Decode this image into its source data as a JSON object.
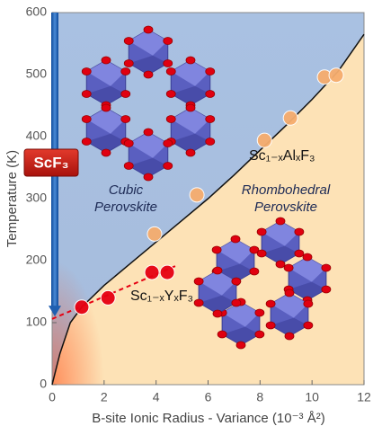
{
  "chart_data": {
    "type": "scatter",
    "xlabel": "B-site Ionic Radius - Variance (10⁻³ Å²)",
    "ylabel": "Temperature (K)",
    "xlim": [
      0,
      12
    ],
    "ylim": [
      0,
      600
    ],
    "xticks": [
      0,
      2,
      4,
      6,
      8,
      10,
      12
    ],
    "yticks": [
      0,
      100,
      200,
      300,
      400,
      500,
      600
    ],
    "series": [
      {
        "name": "Sc₁₋ₓAlₓF₃",
        "color": "#f6ad6e",
        "x": [
          3.94,
          5.57,
          8.17,
          9.17,
          10.48,
          10.93
        ],
        "values": [
          243,
          306,
          394,
          430,
          496,
          499
        ]
      },
      {
        "name": "Sc₁₋ₓYₓF₃",
        "color": "#e60012",
        "x": [
          1.14,
          2.15,
          3.84,
          4.43
        ],
        "values": [
          125,
          140,
          181,
          181
        ]
      }
    ],
    "phase_boundary": {
      "color": "#111111",
      "x": [
        0,
        0.3,
        0.7,
        1.14,
        2,
        3,
        4,
        5,
        6,
        7,
        8,
        9,
        10,
        11,
        12
      ],
      "values": [
        0,
        50,
        100,
        125,
        160,
        195,
        230,
        265,
        300,
        338,
        378,
        418,
        460,
        505,
        565
      ]
    },
    "fit_line": {
      "color": "#e60012",
      "x": [
        0,
        4.84
      ],
      "values": [
        106,
        193
      ]
    },
    "arrow": {
      "x": 0,
      "y": [
        600,
        110
      ],
      "color": "#1f5fb0"
    },
    "annotations": {
      "compound": "ScF₃",
      "cubic": [
        "Cubic",
        "Perovskite"
      ],
      "rhombohedral": [
        "Rhombohedral",
        "Perovskite"
      ]
    }
  }
}
